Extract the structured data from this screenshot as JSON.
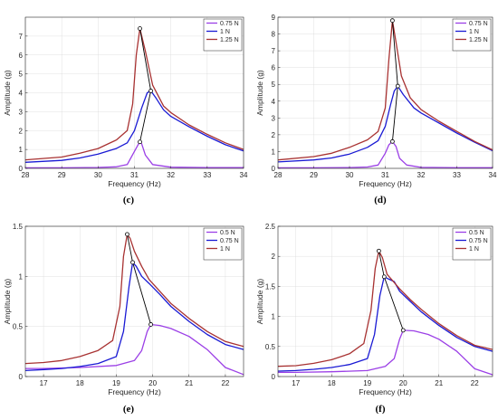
{
  "colors": {
    "purple": "#9b3fe6",
    "blue": "#1a1ad4",
    "red": "#a83232"
  },
  "chart_data": [
    {
      "panel": "(c)",
      "type": "line",
      "xlabel": "Frequency (Hz)",
      "ylabel": "Amplitude (g)",
      "xlim": [
        28,
        34
      ],
      "ylim": [
        0,
        8
      ],
      "xticks": [
        28,
        29,
        30,
        31,
        32,
        33,
        34
      ],
      "yticks": [
        0,
        1,
        2,
        3,
        4,
        5,
        6,
        7
      ],
      "grid": true,
      "legend_position": "top-right",
      "peak_line": true,
      "series": [
        {
          "name": "0.75 N",
          "color": "purple",
          "x": [
            28,
            29,
            30,
            30.5,
            30.8,
            31.0,
            31.1,
            31.15,
            31.2,
            31.3,
            31.5,
            32,
            33,
            34
          ],
          "y": [
            0.03,
            0.03,
            0.05,
            0.08,
            0.2,
            0.9,
            1.25,
            1.4,
            1.3,
            0.7,
            0.2,
            0.06,
            0.04,
            0.04
          ]
        },
        {
          "name": "1 N",
          "color": "blue",
          "x": [
            28,
            29,
            29.5,
            30,
            30.5,
            30.8,
            31.0,
            31.2,
            31.35,
            31.45,
            31.6,
            31.8,
            32,
            32.5,
            33,
            33.5,
            34
          ],
          "y": [
            0.32,
            0.42,
            0.55,
            0.75,
            1.05,
            1.35,
            2.0,
            3.2,
            4.0,
            4.1,
            3.7,
            3.1,
            2.75,
            2.2,
            1.7,
            1.25,
            0.92
          ]
        },
        {
          "name": "1.25 N",
          "color": "red",
          "x": [
            28,
            29,
            29.5,
            30,
            30.5,
            30.8,
            30.95,
            31.05,
            31.15,
            31.3,
            31.5,
            31.8,
            32,
            32.5,
            33,
            33.5,
            34
          ],
          "y": [
            0.45,
            0.6,
            0.8,
            1.05,
            1.5,
            2.0,
            3.4,
            6.0,
            7.4,
            6.2,
            4.4,
            3.3,
            2.95,
            2.3,
            1.8,
            1.35,
            1.0
          ]
        }
      ]
    },
    {
      "panel": "(d)",
      "type": "line",
      "xlabel": "Frequency (Hz)",
      "ylabel": "Amplitude (g)",
      "xlim": [
        28,
        34
      ],
      "ylim": [
        0,
        9
      ],
      "xticks": [
        28,
        29,
        30,
        31,
        32,
        33,
        34
      ],
      "yticks": [
        0,
        1,
        2,
        3,
        4,
        5,
        6,
        7,
        8,
        9
      ],
      "grid": true,
      "legend_position": "top-right",
      "peak_line": true,
      "series": [
        {
          "name": "0.75 N",
          "color": "purple",
          "x": [
            28,
            29,
            30,
            30.5,
            30.8,
            31.0,
            31.1,
            31.2,
            31.3,
            31.4,
            31.6,
            32,
            33,
            34
          ],
          "y": [
            0.03,
            0.03,
            0.05,
            0.08,
            0.2,
            0.9,
            1.4,
            1.6,
            1.3,
            0.6,
            0.2,
            0.06,
            0.04,
            0.04
          ]
        },
        {
          "name": "1 N",
          "color": "blue",
          "x": [
            28,
            29,
            29.5,
            30,
            30.5,
            30.8,
            31.0,
            31.15,
            31.25,
            31.35,
            31.5,
            31.8,
            32,
            32.5,
            33,
            33.5,
            34
          ],
          "y": [
            0.38,
            0.5,
            0.62,
            0.85,
            1.25,
            1.65,
            2.5,
            3.8,
            4.6,
            4.9,
            4.4,
            3.6,
            3.3,
            2.7,
            2.1,
            1.55,
            1.05
          ]
        },
        {
          "name": "1.25 N",
          "color": "red",
          "x": [
            28,
            29,
            29.5,
            30,
            30.5,
            30.8,
            31.0,
            31.1,
            31.2,
            31.3,
            31.45,
            31.7,
            32,
            32.5,
            33,
            33.5,
            34
          ],
          "y": [
            0.5,
            0.7,
            0.9,
            1.25,
            1.7,
            2.2,
            3.6,
            6.5,
            8.8,
            7.5,
            5.5,
            4.2,
            3.5,
            2.8,
            2.2,
            1.6,
            1.1
          ]
        }
      ]
    },
    {
      "panel": "(e)",
      "type": "line",
      "xlabel": "Frequency (Hz)",
      "ylabel": "Amplitude (g)",
      "xlim": [
        16.5,
        22.5
      ],
      "ylim": [
        0,
        1.5
      ],
      "xticks": [
        17,
        18,
        19,
        20,
        21,
        22
      ],
      "yticks": [
        0,
        0.5,
        1,
        1.5
      ],
      "grid": true,
      "legend_position": "top-right",
      "peak_line": true,
      "series": [
        {
          "name": "0.5 N",
          "color": "purple",
          "x": [
            16.5,
            17,
            18,
            19,
            19.5,
            19.7,
            19.85,
            19.95,
            20.2,
            20.5,
            21,
            21.5,
            22,
            22.5
          ],
          "y": [
            0.08,
            0.08,
            0.09,
            0.11,
            0.16,
            0.26,
            0.45,
            0.52,
            0.51,
            0.48,
            0.4,
            0.27,
            0.09,
            0.02
          ]
        },
        {
          "name": "0.75 N",
          "color": "blue",
          "x": [
            16.5,
            17,
            17.5,
            18,
            18.5,
            19.0,
            19.2,
            19.35,
            19.45,
            19.55,
            19.7,
            19.9,
            20.2,
            20.5,
            21,
            21.5,
            22,
            22.5
          ],
          "y": [
            0.06,
            0.07,
            0.08,
            0.1,
            0.13,
            0.2,
            0.45,
            0.9,
            1.14,
            1.1,
            1.0,
            0.93,
            0.82,
            0.7,
            0.55,
            0.42,
            0.32,
            0.27
          ]
        },
        {
          "name": "1 N",
          "color": "red",
          "x": [
            16.5,
            17,
            17.5,
            18,
            18.5,
            18.9,
            19.1,
            19.2,
            19.3,
            19.38,
            19.5,
            19.7,
            19.9,
            20.2,
            20.5,
            21,
            21.5,
            22,
            22.5
          ],
          "y": [
            0.13,
            0.14,
            0.16,
            0.2,
            0.26,
            0.36,
            0.7,
            1.2,
            1.42,
            1.38,
            1.25,
            1.1,
            0.97,
            0.85,
            0.73,
            0.58,
            0.45,
            0.35,
            0.3
          ]
        }
      ]
    },
    {
      "panel": "(f)",
      "type": "line",
      "xlabel": "Frequency (Hz)",
      "ylabel": "Amplitude (g)",
      "xlim": [
        16.5,
        22.5
      ],
      "ylim": [
        0,
        2.5
      ],
      "xticks": [
        17,
        18,
        19,
        20,
        21,
        22
      ],
      "yticks": [
        0,
        0.5,
        1,
        1.5,
        2,
        2.5
      ],
      "grid": true,
      "legend_position": "top-right",
      "peak_line": true,
      "series": [
        {
          "name": "0.5 N",
          "color": "purple",
          "x": [
            16.5,
            17,
            18,
            19,
            19.5,
            19.75,
            19.9,
            20.0,
            20.3,
            20.7,
            21,
            21.5,
            22,
            22.5
          ],
          "y": [
            0.07,
            0.07,
            0.08,
            0.1,
            0.17,
            0.3,
            0.62,
            0.77,
            0.76,
            0.7,
            0.62,
            0.42,
            0.13,
            0.03
          ]
        },
        {
          "name": "0.75 N",
          "color": "blue",
          "x": [
            16.5,
            17,
            17.5,
            18,
            18.5,
            19.0,
            19.2,
            19.35,
            19.47,
            19.6,
            19.75,
            19.9,
            20.2,
            20.5,
            21,
            21.5,
            22,
            22.5
          ],
          "y": [
            0.09,
            0.1,
            0.12,
            0.15,
            0.2,
            0.3,
            0.7,
            1.35,
            1.66,
            1.62,
            1.58,
            1.42,
            1.25,
            1.08,
            0.85,
            0.65,
            0.5,
            0.42
          ]
        },
        {
          "name": "1 N",
          "color": "red",
          "x": [
            16.5,
            17,
            17.5,
            18,
            18.5,
            18.9,
            19.1,
            19.22,
            19.32,
            19.42,
            19.55,
            19.7,
            19.9,
            20.2,
            20.5,
            21,
            21.5,
            22,
            22.5
          ],
          "y": [
            0.17,
            0.18,
            0.22,
            0.28,
            0.38,
            0.55,
            1.1,
            1.8,
            2.09,
            1.98,
            1.7,
            1.6,
            1.46,
            1.28,
            1.12,
            0.88,
            0.68,
            0.52,
            0.45
          ]
        }
      ]
    }
  ]
}
